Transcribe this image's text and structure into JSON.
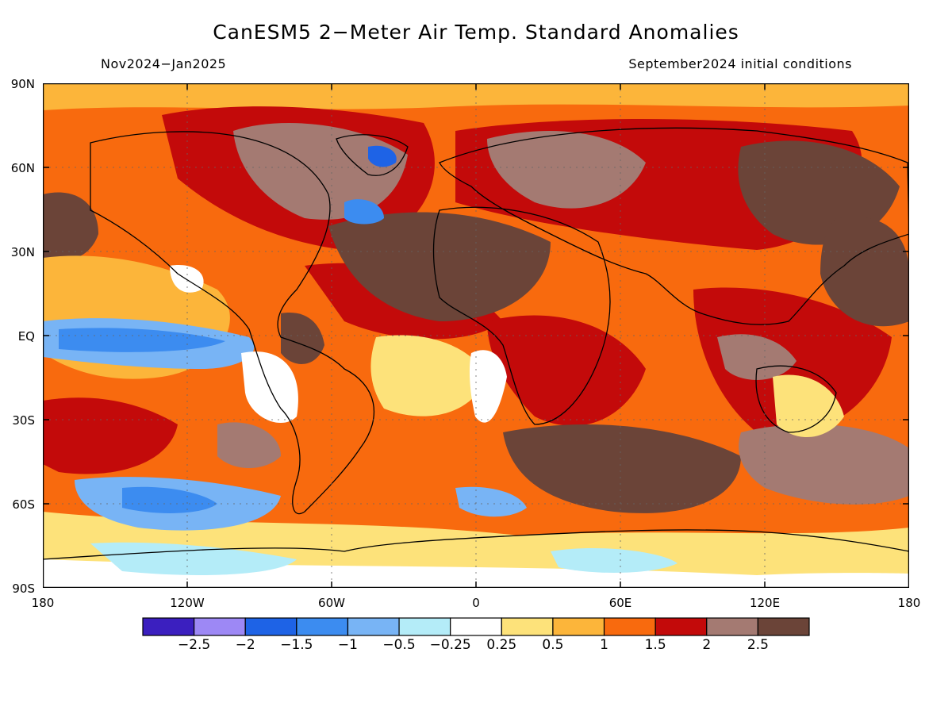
{
  "title": "CanESM5 2−Meter Air Temp. Standard Anomalies",
  "period": "Nov2024−Jan2025",
  "init": "September2024 initial conditions",
  "lat_labels": [
    "90N",
    "60N",
    "30N",
    "EQ",
    "30S",
    "60S",
    "90S"
  ],
  "lon_labels": [
    "180",
    "120W",
    "60W",
    "0",
    "60E",
    "120E",
    "180"
  ],
  "colorbar": {
    "colors": [
      "#3b1fbf",
      "#9d88f5",
      "#1e63e6",
      "#3c8cf0",
      "#78b4f5",
      "#b4ecf8",
      "#ffffff",
      "#fde27a",
      "#fcb53a",
      "#f86a0e",
      "#c30a0a",
      "#a47a72",
      "#6b4438"
    ],
    "labels": [
      "−2.5",
      "−2",
      "−1.5",
      "−1",
      "−0.5",
      "−0.25",
      "0.25",
      "0.5",
      "1",
      "1.5",
      "2",
      "2.5"
    ]
  }
}
